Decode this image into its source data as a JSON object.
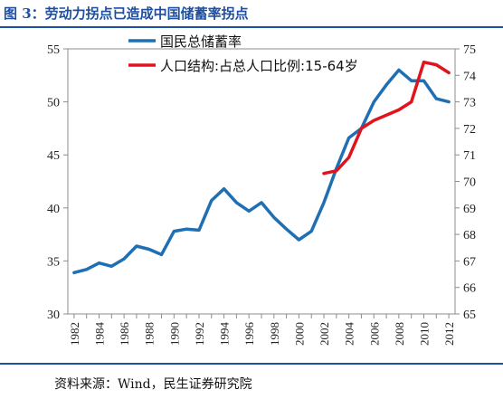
{
  "header": {
    "title": "图 3：劳动力拐点已造成中国储蓄率拐点"
  },
  "footer": {
    "source": "资料来源：Wind，民生证券研究院"
  },
  "chart_data": {
    "type": "line",
    "title": "劳动力拐点已造成中国储蓄率拐点",
    "x_ticks": [
      "1982",
      "1984",
      "1986",
      "1988",
      "1990",
      "1992",
      "1994",
      "1996",
      "1998",
      "2000",
      "2002",
      "2004",
      "2006",
      "2008",
      "2010",
      "2012"
    ],
    "y_left": {
      "range": [
        30,
        55
      ],
      "ticks": [
        30,
        35,
        40,
        45,
        50,
        55
      ]
    },
    "y_right": {
      "range": [
        65,
        75
      ],
      "ticks": [
        65,
        66,
        67,
        68,
        69,
        70,
        71,
        72,
        73,
        74,
        75
      ]
    },
    "grid": false,
    "legend_position": "top-center",
    "series": [
      {
        "name": "国民总储蓄率",
        "axis": "left",
        "color": "#1f6fb4",
        "x": [
          1982,
          1983,
          1984,
          1985,
          1986,
          1987,
          1988,
          1989,
          1990,
          1991,
          1992,
          1993,
          1994,
          1995,
          1996,
          1997,
          1998,
          1999,
          2000,
          2001,
          2002,
          2003,
          2004,
          2005,
          2006,
          2007,
          2008,
          2009,
          2010,
          2011,
          2012
        ],
        "values": [
          33.9,
          34.2,
          34.8,
          34.5,
          35.2,
          36.4,
          36.1,
          35.6,
          37.8,
          38.0,
          37.9,
          40.7,
          41.8,
          40.5,
          39.7,
          40.5,
          39.1,
          38.0,
          37.0,
          37.8,
          40.5,
          43.7,
          46.6,
          47.5,
          50.0,
          51.6,
          53.0,
          52.0,
          52.0,
          50.3,
          50.0
        ]
      },
      {
        "name": "人口结构:占总人口比例:15-64岁",
        "axis": "right",
        "color": "#e0141e",
        "x": [
          2002,
          2003,
          2004,
          2005,
          2006,
          2007,
          2008,
          2009,
          2010,
          2011,
          2012
        ],
        "values": [
          70.3,
          70.4,
          70.9,
          72.0,
          72.3,
          72.5,
          72.7,
          73.0,
          74.5,
          74.4,
          74.1
        ]
      }
    ]
  }
}
